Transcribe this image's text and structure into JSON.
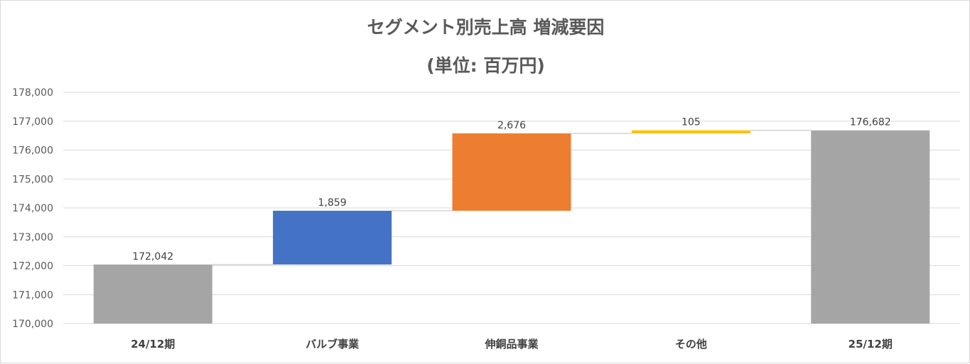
{
  "chart_data": {
    "type": "bar",
    "subtype": "waterfall",
    "title": "セグメント別売上高 増減要因",
    "subtitle": "(単位: 百万円)",
    "categories": [
      "24/12期",
      "バルブ事業",
      "伸銅品事業",
      "その他",
      "25/12期"
    ],
    "values": [
      172042,
      1859,
      2676,
      105,
      176682
    ],
    "value_labels": [
      "172,042",
      "1,859",
      "2,676",
      "105",
      "176,682"
    ],
    "bar_kinds": [
      "total",
      "increase",
      "increase",
      "increase",
      "total"
    ],
    "colors": [
      "#a5a5a5",
      "#4472c4",
      "#ed7d31",
      "#ffc000",
      "#a5a5a5"
    ],
    "ylim": [
      170000,
      178000
    ],
    "yticks": [
      170000,
      171000,
      172000,
      173000,
      174000,
      175000,
      176000,
      177000,
      178000
    ],
    "ytick_labels": [
      "170,000",
      "171,000",
      "172,000",
      "173,000",
      "174,000",
      "175,000",
      "176,000",
      "177,000",
      "178,000"
    ],
    "grid": true,
    "connector_lines": true,
    "legend": "none"
  }
}
